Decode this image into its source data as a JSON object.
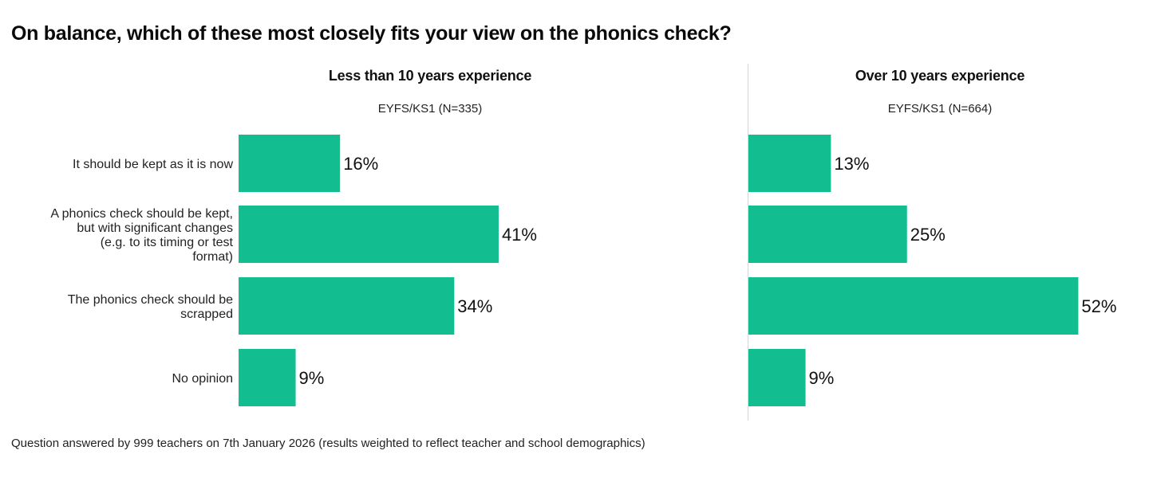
{
  "chart_data": {
    "type": "bar",
    "orientation": "horizontal",
    "title": "On balance, which of these most closely fits your view on the phonics check?",
    "categories": [
      [
        "It should be kept as it is now"
      ],
      [
        "A phonics check should be kept,",
        "but with significant changes",
        "(e.g. to its timing or test",
        "format)"
      ],
      [
        "The phonics check should be",
        "scrapped"
      ],
      [
        "No opinion"
      ]
    ],
    "category_names": [
      "It should be kept as it is now",
      "A phonics check should be kept, but with significant changes (e.g. to its timing or test format)",
      "The phonics check should be scrapped",
      "No opinion"
    ],
    "series": [
      {
        "name": "Less than 10 years experience",
        "subtitle": "EYFS/KS1 (N=335)",
        "values": [
          16,
          41,
          34,
          9
        ],
        "labels": [
          "16%",
          "41%",
          "34%",
          "9%"
        ]
      },
      {
        "name": "Over 10 years experience",
        "subtitle": "EYFS/KS1 (N=664)",
        "values": [
          13,
          25,
          52,
          9
        ],
        "labels": [
          "13%",
          "25%",
          "52%",
          "9%"
        ]
      }
    ],
    "xlim": [
      0,
      60
    ],
    "bar_color": "#12be90",
    "grid": false,
    "legend": "none",
    "footnote": "Question answered by 999 teachers on 7th January 2026 (results weighted to reflect teacher and school demographics)"
  }
}
